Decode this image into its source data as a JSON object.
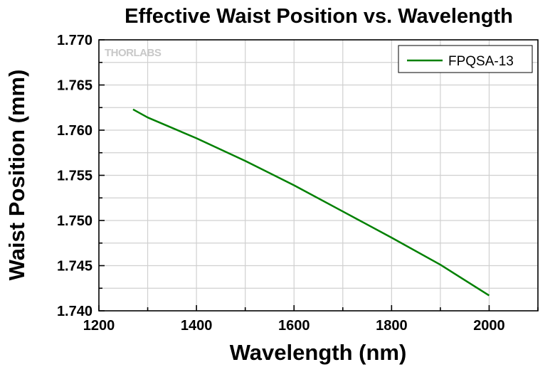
{
  "chart_data": {
    "type": "line",
    "title": "Effective Waist Position vs. Wavelength",
    "xlabel": "Wavelength (nm)",
    "ylabel": "Waist Position (mm)",
    "xlim": [
      1200,
      2100
    ],
    "ylim": [
      1.74,
      1.77
    ],
    "xticks": [
      1200,
      1400,
      1600,
      1800,
      2000
    ],
    "xtick_labels": [
      "1200",
      "1400",
      "1600",
      "1800",
      "2000"
    ],
    "yticks": [
      1.74,
      1.745,
      1.75,
      1.755,
      1.76,
      1.765,
      1.77
    ],
    "ytick_labels": [
      "1.740",
      "1.745",
      "1.750",
      "1.755",
      "1.760",
      "1.765",
      "1.770"
    ],
    "grid": true,
    "legend_position": "top-right",
    "watermark": "THORLABS",
    "series": [
      {
        "name": "FPQSA-13",
        "color": "#008000",
        "x": [
          1270,
          1300,
          1400,
          1500,
          1600,
          1700,
          1800,
          1900,
          2000
        ],
        "y": [
          1.7623,
          1.7614,
          1.7591,
          1.7566,
          1.7539,
          1.751,
          1.7481,
          1.7451,
          1.7417
        ]
      }
    ]
  }
}
